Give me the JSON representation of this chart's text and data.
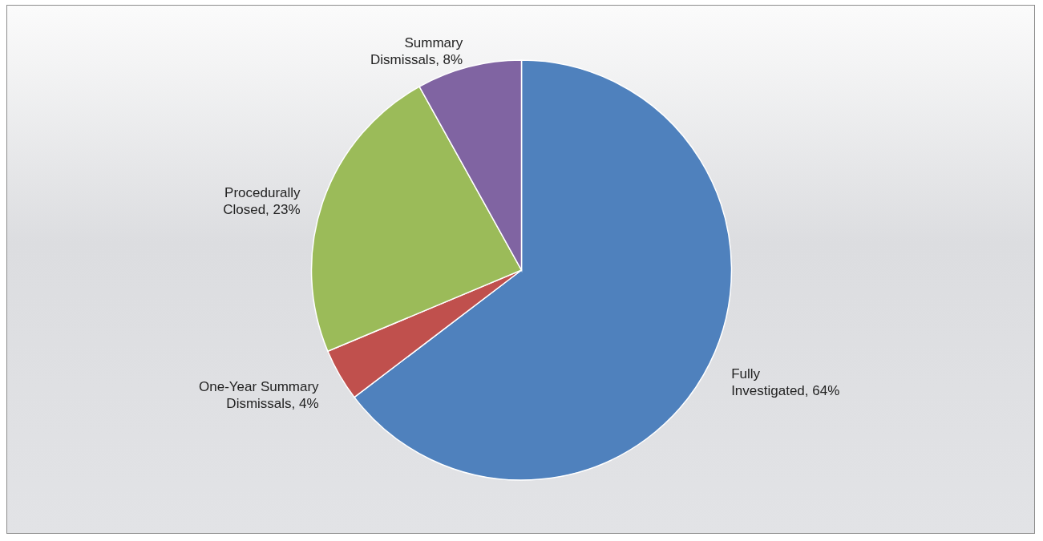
{
  "chart_data": {
    "type": "pie",
    "categories": [
      "Fully Investigated",
      "One-Year Summary Dismissals",
      "Procedurally Closed",
      "Summary Dismissals"
    ],
    "values": [
      64,
      4,
      23,
      8
    ],
    "value_labels": [
      "64%",
      "4%",
      "23%",
      "8%"
    ],
    "colors": [
      "#4f81bd",
      "#c0504d",
      "#9bbb59",
      "#8064a2"
    ]
  }
}
